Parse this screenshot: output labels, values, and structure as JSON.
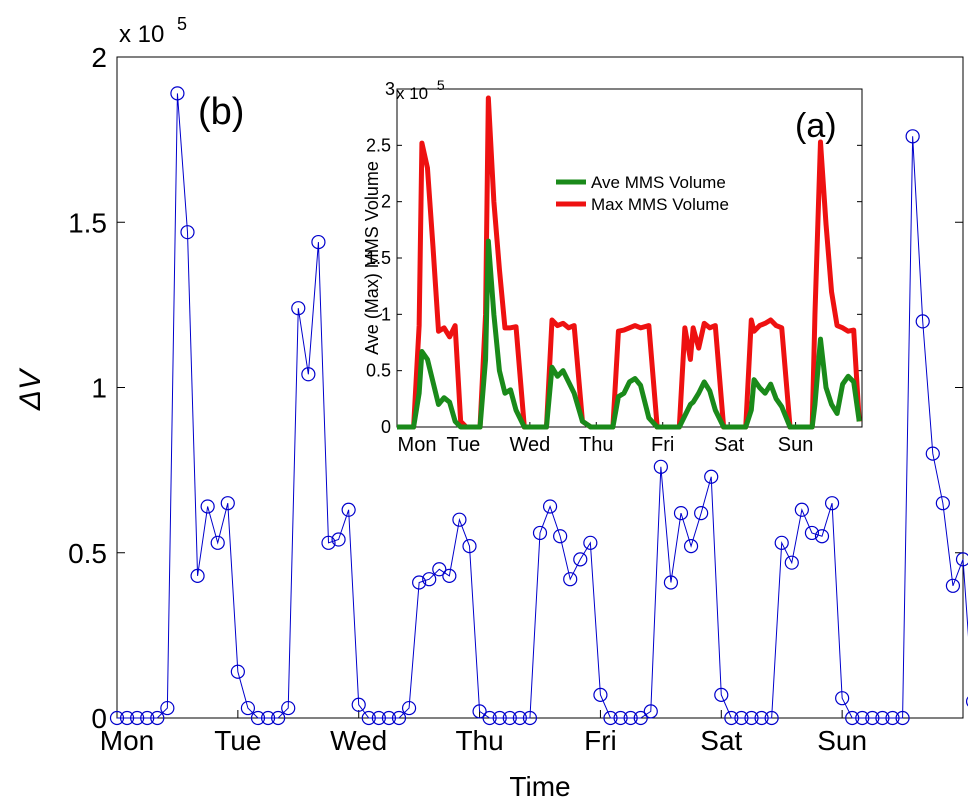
{
  "chart_data": [
    {
      "type": "line",
      "panel_label": "(b)",
      "xlabel": "Time",
      "ylabel": "ΔV",
      "y_exponent_label": "x 10",
      "y_exponent_power": "5",
      "ylim": [
        0,
        200000
      ],
      "yticks": [
        {
          "value": 0,
          "label": "0"
        },
        {
          "value": 50000,
          "label": "0.5"
        },
        {
          "value": 100000,
          "label": "1"
        },
        {
          "value": 150000,
          "label": "1.5"
        },
        {
          "value": 200000,
          "label": "2"
        }
      ],
      "xlim": [
        0,
        84
      ],
      "xticks": [
        {
          "value": 0,
          "label": "Mon"
        },
        {
          "value": 12,
          "label": "Tue"
        },
        {
          "value": 24,
          "label": "Wed"
        },
        {
          "value": 36,
          "label": "Thu"
        },
        {
          "value": 48,
          "label": "Fri"
        },
        {
          "value": 60,
          "label": "Sat"
        },
        {
          "value": 72,
          "label": "Sun"
        }
      ],
      "series": [
        {
          "marker": "circle",
          "color": "#0000cc",
          "values": [
            0,
            0,
            0,
            0,
            0,
            3000,
            189000,
            147000,
            43000,
            64000,
            53000,
            65000,
            14000,
            3000,
            0,
            0,
            0,
            3000,
            124000,
            104000,
            144000,
            53000,
            54000,
            63000,
            4000,
            0,
            0,
            0,
            0,
            3000,
            41000,
            42000,
            45000,
            43000,
            60000,
            52000,
            2000,
            0,
            0,
            0,
            0,
            0,
            56000,
            64000,
            55000,
            42000,
            48000,
            53000,
            7000,
            0,
            0,
            0,
            0,
            2000,
            76000,
            41000,
            62000,
            52000,
            62000,
            73000,
            7000,
            0,
            0,
            0,
            0,
            0,
            53000,
            47000,
            63000,
            56000,
            55000,
            65000,
            6000,
            0,
            0,
            0,
            0,
            0,
            0,
            176000,
            120000,
            80000,
            65000,
            40000,
            48000,
            5000
          ]
        }
      ]
    },
    {
      "type": "line",
      "panel_label": "(a)",
      "xlabel": "",
      "ylabel": "Ave (Max) MMS Volume",
      "y_exponent_label": "x 10",
      "y_exponent_power": "5",
      "ylim": [
        0,
        300000
      ],
      "yticks": [
        {
          "value": 0,
          "label": "0"
        },
        {
          "value": 50000,
          "label": "0.5"
        },
        {
          "value": 100000,
          "label": "1"
        },
        {
          "value": 150000,
          "label": "1.5"
        },
        {
          "value": 200000,
          "label": "2"
        },
        {
          "value": 250000,
          "label": "2.5"
        },
        {
          "value": 300000,
          "label": "3"
        }
      ],
      "xlim": [
        0,
        168
      ],
      "xticks": [
        {
          "value": 0,
          "label": "Mon"
        },
        {
          "value": 24,
          "label": "Tue"
        },
        {
          "value": 48,
          "label": "Wed"
        },
        {
          "value": 72,
          "label": "Thu"
        },
        {
          "value": 96,
          "label": "Fri"
        },
        {
          "value": 120,
          "label": "Sat"
        },
        {
          "value": 144,
          "label": "Sun"
        }
      ],
      "legend": "top-right",
      "series": [
        {
          "name": "Ave MMS Volume",
          "color": "#1a8a1a",
          "x": [
            0,
            6,
            8,
            9,
            11,
            13,
            15,
            17,
            19,
            21,
            23,
            25,
            30,
            32,
            33,
            35,
            37,
            39,
            41,
            43,
            46,
            49,
            54,
            56,
            58,
            60,
            62,
            64,
            67,
            70,
            72,
            78,
            80,
            82,
            84,
            86,
            88,
            91,
            94,
            96,
            102,
            104,
            106,
            107,
            109,
            111,
            113,
            115,
            118,
            120,
            126,
            128,
            129,
            131,
            133,
            135,
            137,
            139,
            142,
            144,
            150,
            151,
            153,
            155,
            157,
            159,
            161,
            163,
            165,
            167
          ],
          "y": [
            0,
            0,
            30000,
            67000,
            60000,
            40000,
            20000,
            26000,
            22000,
            5000,
            0,
            0,
            0,
            60000,
            165000,
            100000,
            50000,
            30000,
            33000,
            15000,
            0,
            0,
            0,
            53000,
            45000,
            50000,
            40000,
            30000,
            5000,
            0,
            0,
            0,
            27000,
            30000,
            40000,
            43000,
            37000,
            8000,
            0,
            0,
            0,
            10000,
            20000,
            22000,
            30000,
            40000,
            32000,
            15000,
            0,
            0,
            0,
            15000,
            42000,
            35000,
            30000,
            38000,
            25000,
            18000,
            0,
            0,
            0,
            20000,
            78000,
            35000,
            20000,
            12000,
            38000,
            45000,
            40000,
            5000
          ]
        },
        {
          "name": "Max MMS Volume",
          "color": "#ee1111",
          "x": [
            0,
            6,
            8,
            9,
            11,
            13,
            15,
            17,
            19,
            21,
            23,
            25,
            30,
            32,
            33,
            35,
            37,
            39,
            41,
            43,
            46,
            49,
            54,
            56,
            58,
            60,
            62,
            64,
            67,
            70,
            72,
            78,
            80,
            82,
            84,
            86,
            88,
            91,
            94,
            96,
            102,
            104,
            106,
            107,
            109,
            111,
            113,
            115,
            118,
            120,
            126,
            128,
            129,
            131,
            133,
            135,
            137,
            139,
            142,
            144,
            150,
            151,
            153,
            155,
            157,
            159,
            161,
            163,
            165,
            167
          ],
          "y": [
            0,
            0,
            90000,
            252000,
            230000,
            160000,
            85000,
            88000,
            80000,
            90000,
            5000,
            0,
            0,
            100000,
            292000,
            200000,
            140000,
            88000,
            88000,
            89000,
            0,
            0,
            0,
            95000,
            90000,
            92000,
            88000,
            90000,
            5000,
            0,
            0,
            0,
            85000,
            86000,
            88000,
            90000,
            88000,
            90000,
            0,
            0,
            0,
            88000,
            60000,
            88000,
            70000,
            92000,
            88000,
            90000,
            0,
            0,
            0,
            95000,
            85000,
            90000,
            92000,
            95000,
            90000,
            88000,
            0,
            0,
            0,
            100000,
            253000,
            180000,
            120000,
            90000,
            88000,
            85000,
            86000,
            5000
          ]
        }
      ]
    }
  ]
}
